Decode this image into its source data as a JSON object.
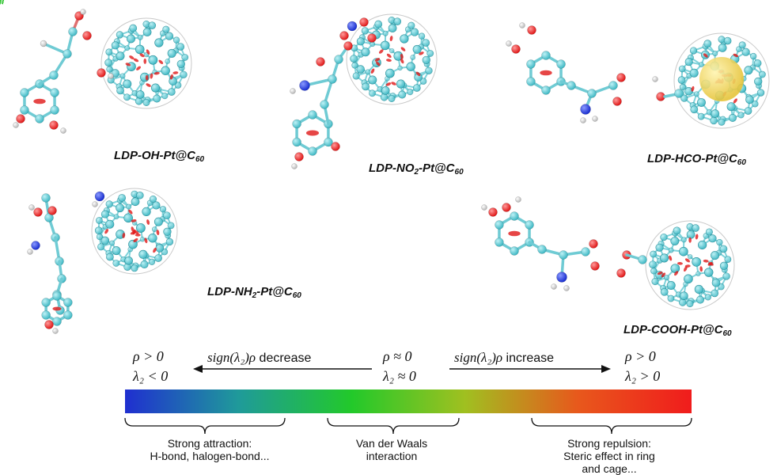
{
  "molecules": [
    {
      "label_main": "LDP-OH-Pt@C",
      "label_sub": "60"
    },
    {
      "label_main": "LDP-NO",
      "label_sub1": "2",
      "label_mid": "-Pt@C",
      "label_sub": "60"
    },
    {
      "label_main": "LDP-HCO-Pt@C",
      "label_sub": "60"
    },
    {
      "label_main": "LDP-NH",
      "label_sub1": "2",
      "label_mid": "-Pt@C",
      "label_sub": "60"
    },
    {
      "label_main": "LDP-COOH-Pt@C",
      "label_sub": "60"
    }
  ],
  "scale": {
    "left_top": "ρ > 0",
    "left_bottom": "λ₂ < 0",
    "center_top": "ρ ≈ 0",
    "center_bottom": "λ₂ ≈ 0",
    "right_top": "ρ > 0",
    "right_bottom": "λ₂ > 0",
    "arrow_left_fn": "sign(λ₂)ρ",
    "arrow_left_word": "decrease",
    "arrow_right_fn": "sign(λ₂)ρ",
    "arrow_right_word": "increase",
    "gradient_colors": [
      "#1f2fd0",
      "#1f9a9a",
      "#22c92a",
      "#a0c020",
      "#e8581c",
      "#f01c1c"
    ]
  },
  "regions": [
    {
      "line1": "Strong attraction:",
      "line2": "H-bond, halogen-bond..."
    },
    {
      "line1": "Van der Waals",
      "line2": "interaction"
    },
    {
      "line1": "Strong repulsion:",
      "line2": "Steric effect in ring",
      "line3": "and cage..."
    }
  ],
  "colors": {
    "carbon": "#3fb8c4",
    "oxygen": "#e01818",
    "nitrogen": "#1a2fd0",
    "hydrogen": "#e8e8e8",
    "platinum_sphere": "#e6c43a",
    "interaction_green": "#3cc83c"
  }
}
